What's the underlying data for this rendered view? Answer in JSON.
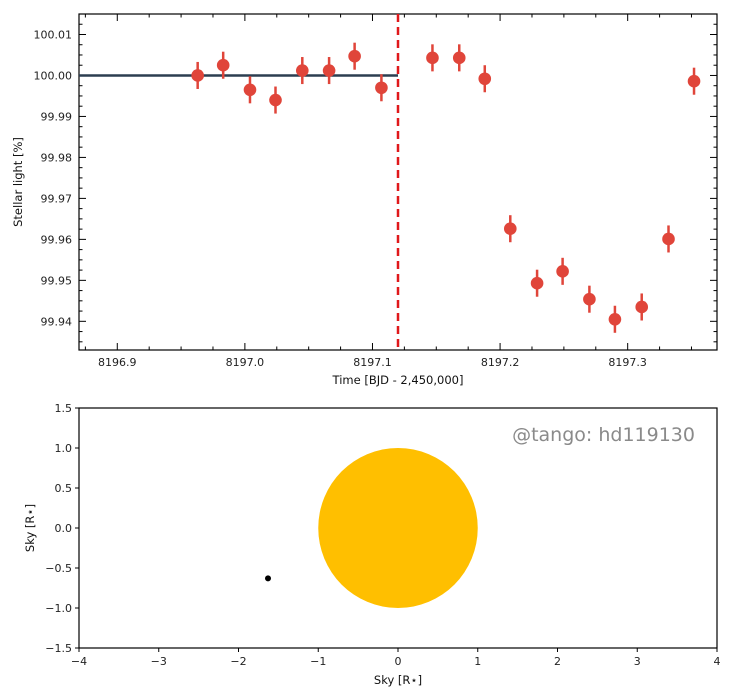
{
  "chart_data": [
    {
      "type": "scatter",
      "xlabel": "Time [BJD - 2,450,000]",
      "ylabel": "Stellar light [%]",
      "xlim": [
        8196.87,
        8197.37
      ],
      "ylim": [
        99.933,
        100.015
      ],
      "xticks": [
        8196.9,
        8197.0,
        8197.1,
        8197.2,
        8197.3
      ],
      "xtick_labels": [
        "8196.9",
        "8197.0",
        "8197.1",
        "8197.2",
        "8197.3"
      ],
      "yticks": [
        99.94,
        99.95,
        99.96,
        99.97,
        99.98,
        99.99,
        100.0,
        100.01
      ],
      "ytick_labels": [
        "99.94",
        "99.95",
        "99.96",
        "99.97",
        "99.98",
        "99.99",
        "100.00",
        "100.01"
      ],
      "grid": false,
      "colors": {
        "points": "#e0453a",
        "model_line": "#2c3e50",
        "marker_line": "#e0181b"
      },
      "series": [
        {
          "x": [
            8196.963,
            8196.983,
            8197.004,
            8197.024,
            8197.045,
            8197.066,
            8197.086,
            8197.107,
            8197.147,
            8197.168,
            8197.188,
            8197.208,
            8197.229,
            8197.249,
            8197.27,
            8197.29,
            8197.311,
            8197.332,
            8197.352
          ],
          "y": [
            100.0,
            100.0025,
            99.9965,
            99.994,
            100.0012,
            100.0012,
            100.0047,
            99.997,
            100.0043,
            100.0043,
            99.9992,
            99.9626,
            99.9493,
            99.9522,
            99.9454,
            99.9405,
            99.9435,
            99.9601,
            99.9986
          ],
          "yerr": 0.0033
        }
      ],
      "model_line": {
        "x": [
          8196.87,
          8197.12
        ],
        "y": [
          100.0,
          100.0
        ]
      },
      "vertical_marker": {
        "x": 8197.12,
        "style": "dashed"
      }
    },
    {
      "type": "scatter",
      "xlabel": "Sky [R⋆]",
      "ylabel": "Sky [R⋆]",
      "xlim": [
        -4,
        4
      ],
      "ylim": [
        -1.5,
        1.5
      ],
      "xticks": [
        -4,
        -3,
        -2,
        -1,
        0,
        1,
        2,
        3,
        4
      ],
      "xtick_labels": [
        "−4",
        "−3",
        "−2",
        "−1",
        "0",
        "1",
        "2",
        "3",
        "4"
      ],
      "yticks": [
        -1.5,
        -1.0,
        -0.5,
        0.0,
        0.5,
        1.0,
        1.5
      ],
      "ytick_labels": [
        "−1.5",
        "−1.0",
        "−0.5",
        "0.0",
        "0.5",
        "1.0",
        "1.5"
      ],
      "grid": false,
      "annotation": "@tango: hd119130",
      "star": {
        "x": 0,
        "y": 0,
        "radius": 1.0,
        "color": "#ffbf00"
      },
      "planet": {
        "x": -1.63,
        "y": -0.63,
        "color": "#000000"
      }
    }
  ]
}
